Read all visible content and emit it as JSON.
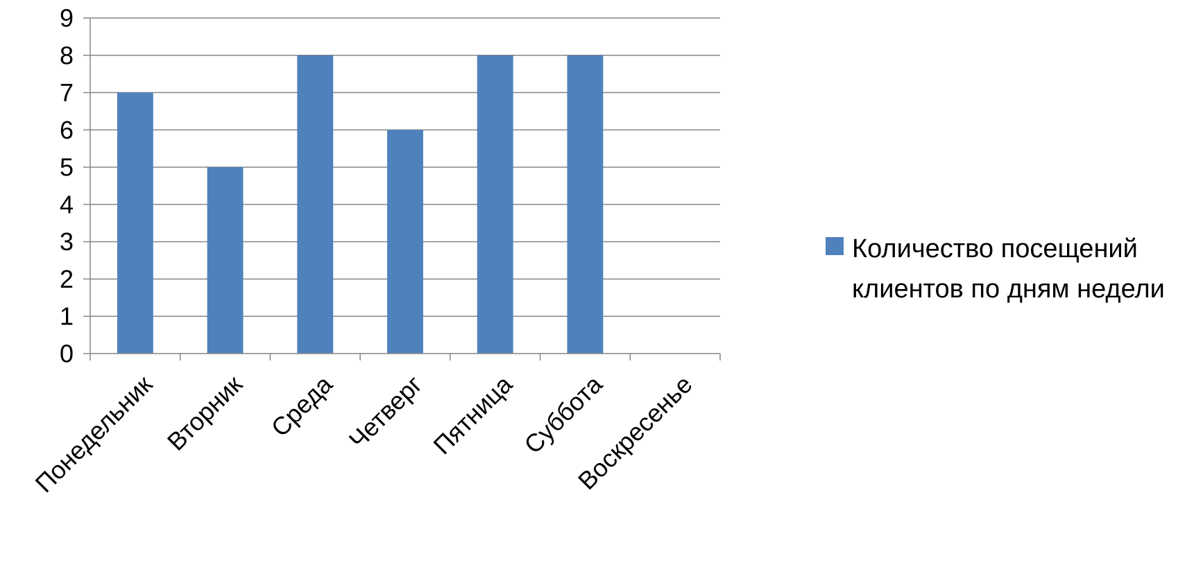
{
  "chart_data": {
    "type": "bar",
    "title": "",
    "xlabel": "",
    "ylabel": "",
    "categories": [
      "Понедельник",
      "Вторник",
      "Среда",
      "Четверг",
      "Пятница",
      "Суббота",
      "Воскресенье"
    ],
    "series": [
      {
        "name": "Количество посещений клиентов по дням недели",
        "values": [
          7,
          5,
          8,
          6,
          8,
          8,
          0
        ],
        "color": "#4F81BD"
      }
    ],
    "ylim": [
      0,
      9
    ],
    "yticks": [
      "0",
      "1",
      "2",
      "3",
      "4",
      "5",
      "6",
      "7",
      "8",
      "9"
    ],
    "grid": true,
    "legend_position": "right"
  },
  "colors": {
    "bar": "#4F81BD",
    "grid": "#868686",
    "axis": "#868686",
    "text": "#000000"
  }
}
